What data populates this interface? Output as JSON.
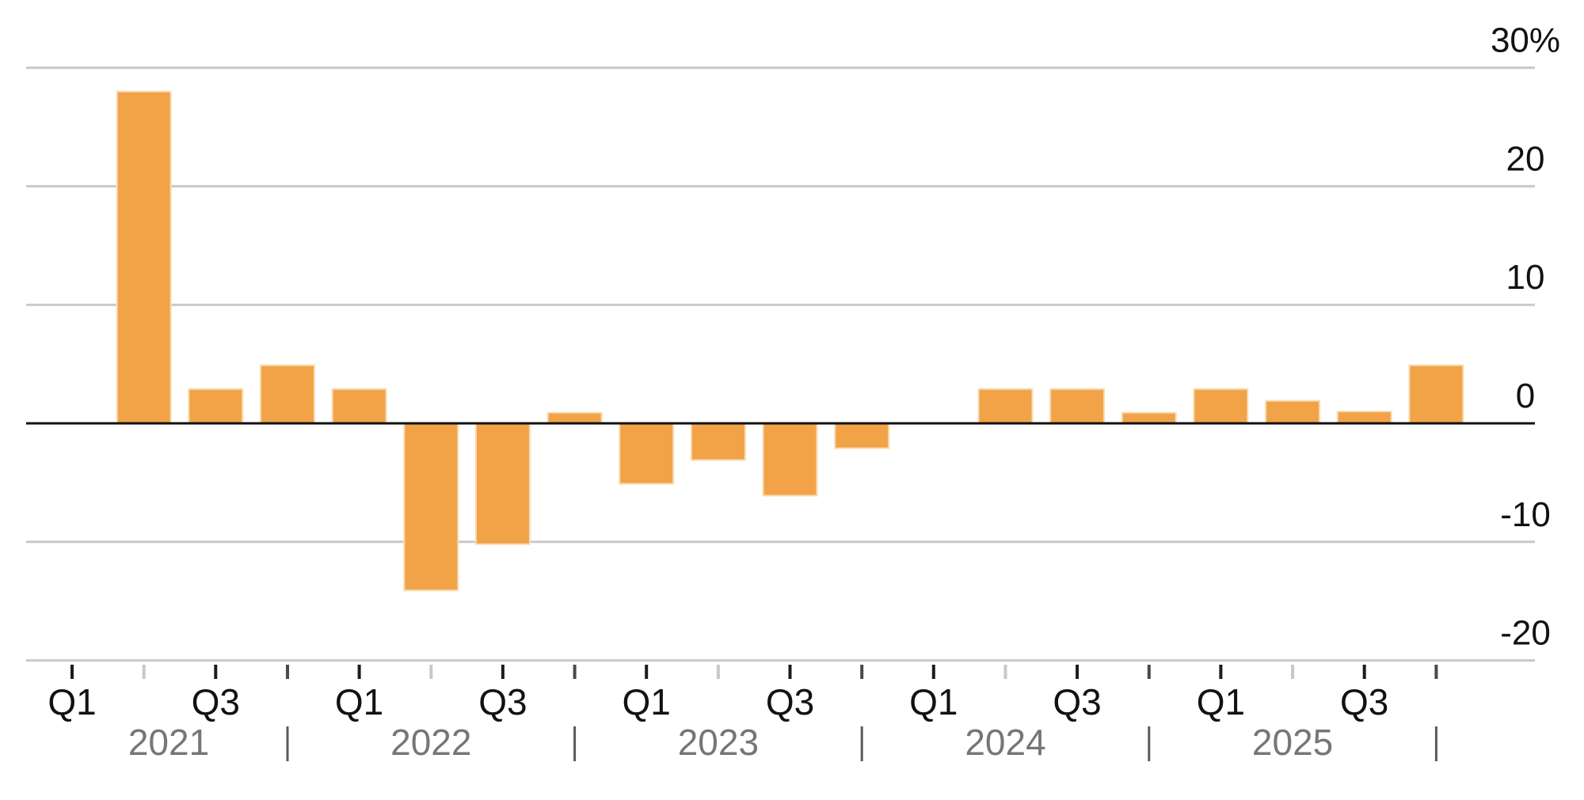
{
  "chart_data": {
    "type": "bar",
    "title": "",
    "xlabel": "",
    "ylabel": "",
    "unit": "%",
    "grid": "horizontal",
    "legend": null,
    "ylim": [
      -20,
      30
    ],
    "y_axis_side": "right",
    "categories": [
      "2021 Q1",
      "2021 Q2",
      "2021 Q3",
      "2021 Q4",
      "2022 Q1",
      "2022 Q2",
      "2022 Q3",
      "2022 Q4",
      "2023 Q1",
      "2023 Q2",
      "2023 Q3",
      "2023 Q4",
      "2024 Q1",
      "2024 Q2",
      "2024 Q3",
      "2024 Q4",
      "2025 Q1",
      "2025 Q2",
      "2025 Q3",
      "2025 Q4"
    ],
    "values": [
      null,
      28.0,
      2.9,
      4.9,
      2.9,
      -14.1,
      -10.2,
      0.9,
      -5.1,
      -3.1,
      -6.1,
      -2.1,
      null,
      2.9,
      2.9,
      0.9,
      2.9,
      1.9,
      1.0,
      4.9
    ],
    "y_ticks": [
      {
        "value": 30,
        "label": "30%"
      },
      {
        "value": 20,
        "label": "20"
      },
      {
        "value": 10,
        "label": "10"
      },
      {
        "value": 0,
        "label": "0"
      },
      {
        "value": -10,
        "label": "-10"
      },
      {
        "value": -20,
        "label": "-20"
      }
    ],
    "x_tick_labels": [
      "Q1",
      "",
      "Q3",
      "",
      "Q1",
      "",
      "Q3",
      "",
      "Q1",
      "",
      "Q3",
      "",
      "Q1",
      "",
      "Q3",
      "",
      "Q1",
      "",
      "Q3",
      ""
    ],
    "year_labels": [
      "2021",
      "2022",
      "2023",
      "2024",
      "2025"
    ]
  },
  "style": {
    "background": "#ffffff",
    "bar_color": "#F2A348",
    "bar_edge_color": "#F8DDB4",
    "grid_color": "#C9C9C9",
    "zero_line_color": "#111111",
    "tick_color_dark": "#1C1C1C",
    "tick_color_light": "#C8C8C8",
    "tick_color_q4": "#4A4A4A",
    "year_divider_color": "#5A5A5A",
    "y_label_color": "#111111",
    "quarter_label_color": "#111111",
    "year_label_color": "#767676"
  }
}
